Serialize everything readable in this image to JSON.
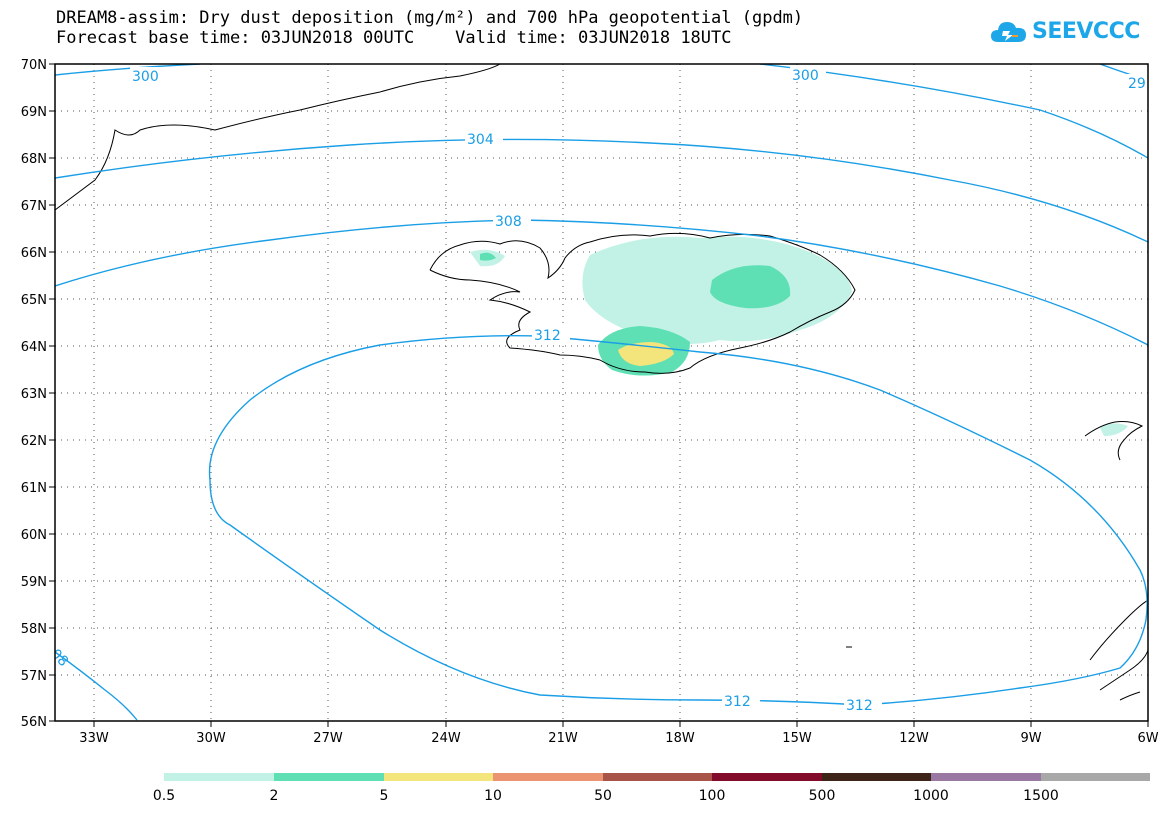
{
  "title": {
    "line1": "DREAM8-assim: Dry dust deposition (mg/m²) and 700 hPa geopotential (gpdm)",
    "line2": "Forecast base time: 03JUN2018 00UTC    Valid time: 03JUN2018 18UTC"
  },
  "logo": {
    "text": "SEEVCCC",
    "icon": "cloud-icon"
  },
  "map": {
    "lat_labels": [
      "70N",
      "69N",
      "68N",
      "67N",
      "66N",
      "65N",
      "64N",
      "63N",
      "62N",
      "61N",
      "60N",
      "59N",
      "58N",
      "57N",
      "56N"
    ],
    "lon_labels": [
      "33W",
      "30W",
      "27W",
      "24W",
      "21W",
      "18W",
      "15W",
      "12W",
      "9W",
      "6W"
    ],
    "contour_labels": [
      "300",
      "300",
      "29",
      "304",
      "308",
      "312",
      "312",
      "312",
      "08"
    ],
    "contour_color": "#1a9ee6"
  },
  "legend": {
    "labels": [
      "0.5",
      "2",
      "5",
      "10",
      "50",
      "100",
      "500",
      "1000",
      "1500"
    ],
    "colors": [
      "#c2f2e6",
      "#5ee0b4",
      "#f4e47c",
      "#ec9472",
      "#a85448",
      "#820a2a",
      "#3e2418",
      "#9a78a4",
      "#a8a8a8"
    ]
  }
}
